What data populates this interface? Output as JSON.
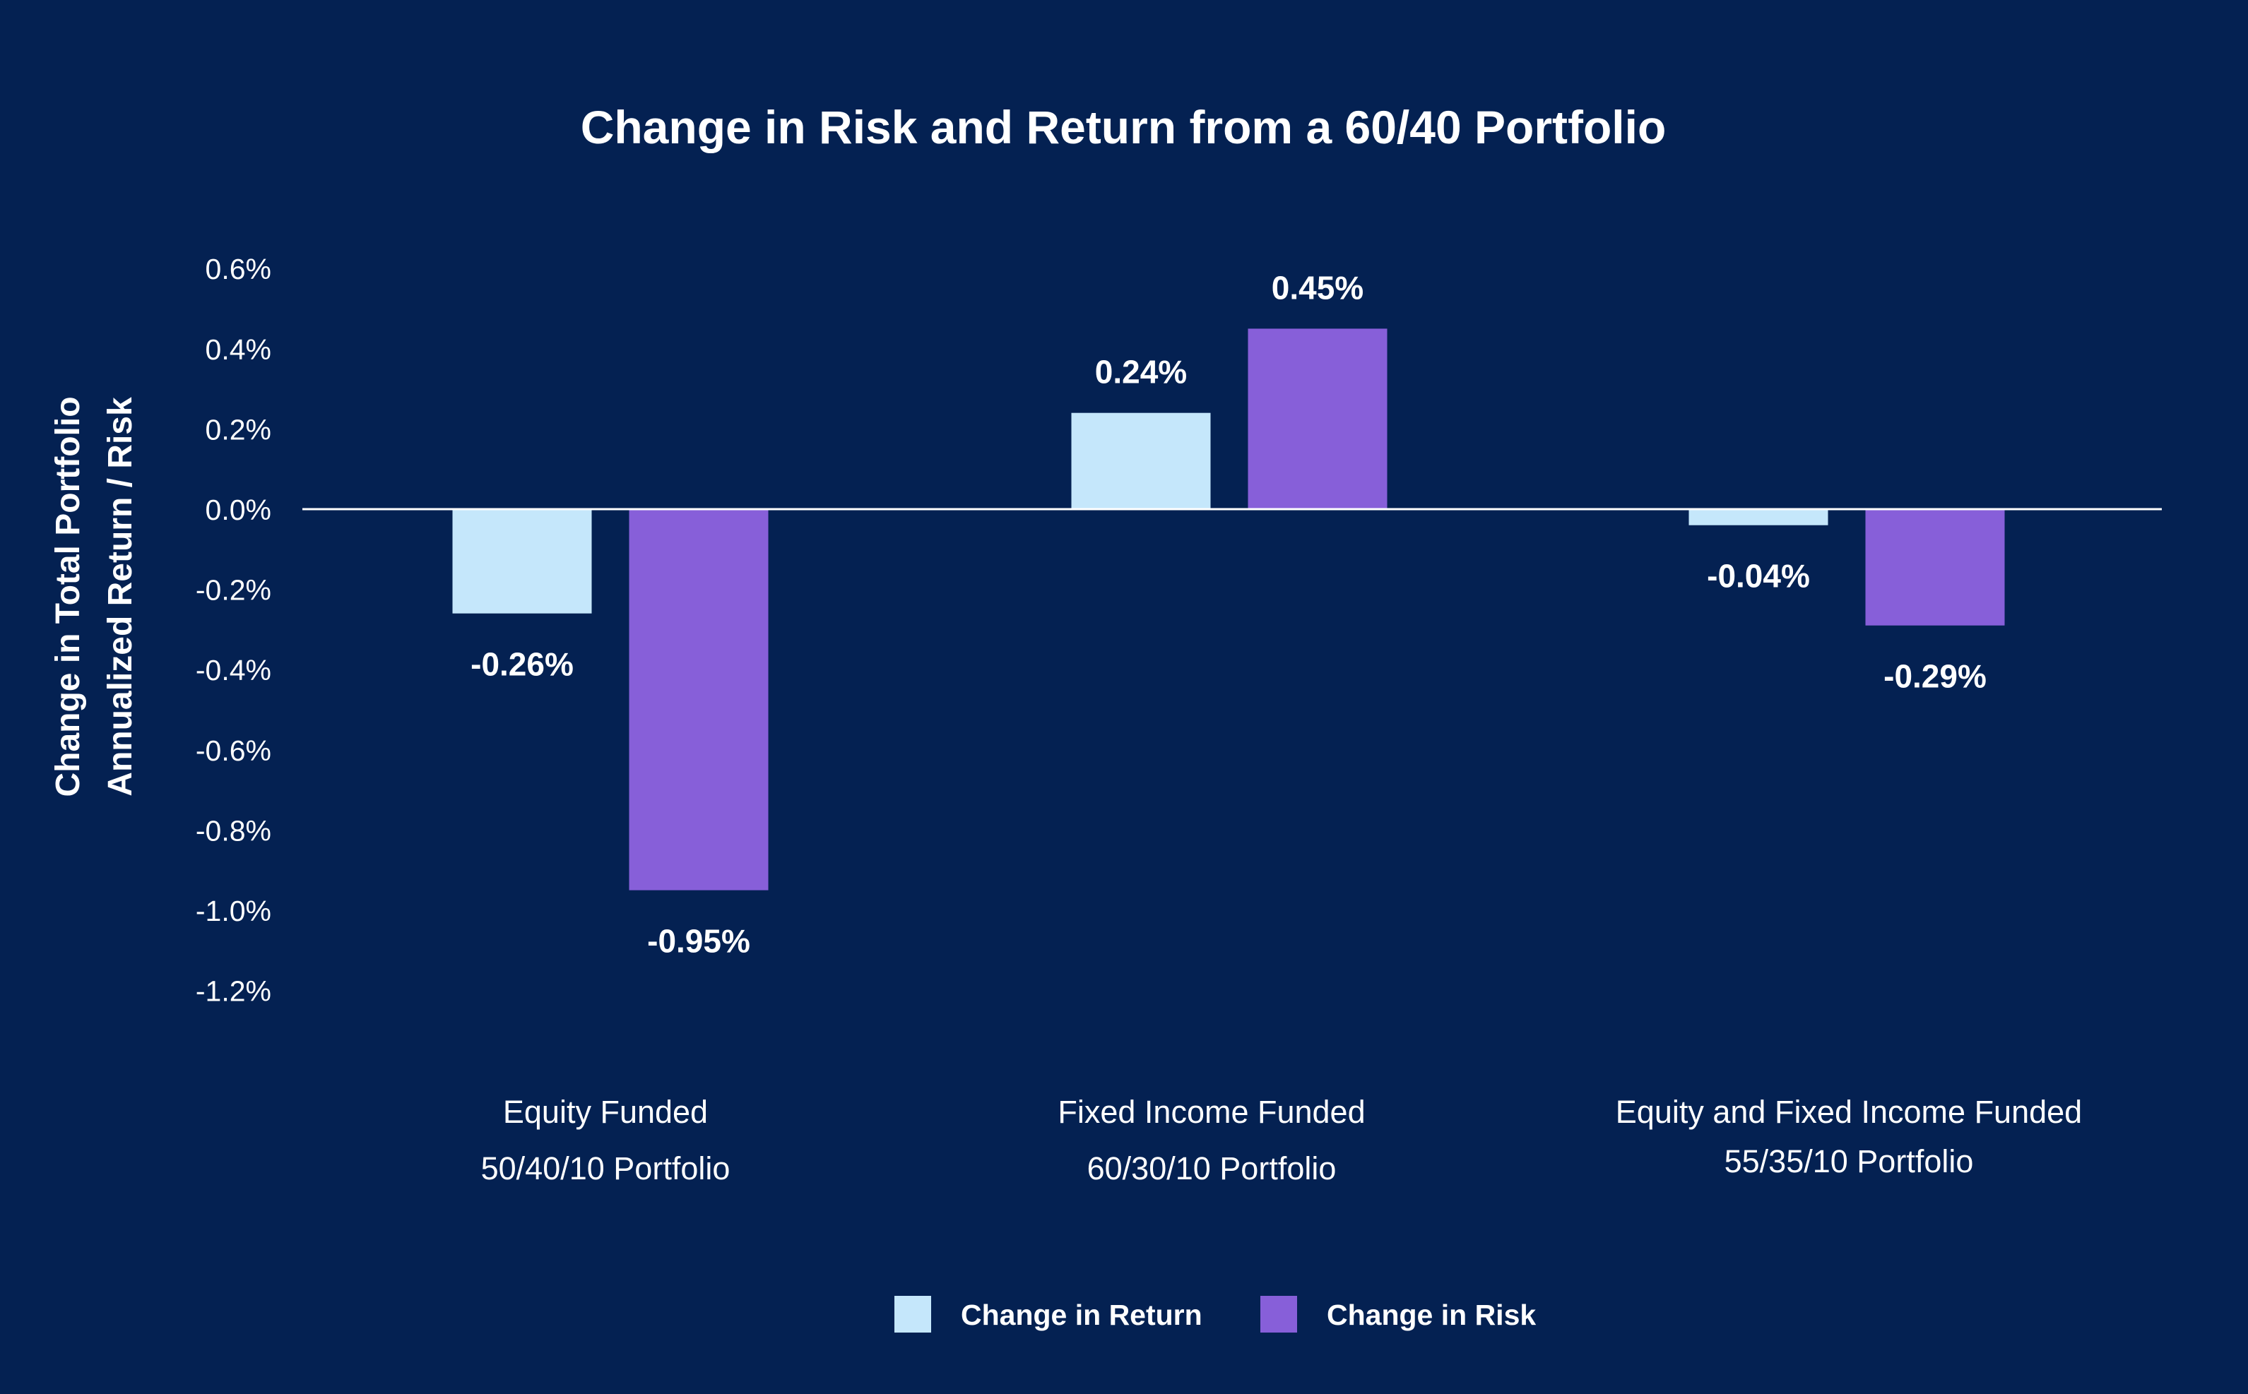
{
  "chart_data": {
    "type": "bar",
    "title": "Change in Risk and Return from a 60/40 Portfolio",
    "ylabel_lines": [
      "Change in Total Portfolio",
      "Annualized Return / Risk"
    ],
    "xlabel": "",
    "ylim": [
      -1.2,
      0.6
    ],
    "yticks": [
      {
        "value": 0.6,
        "label": "0.6%"
      },
      {
        "value": 0.4,
        "label": "0.4%"
      },
      {
        "value": 0.2,
        "label": "0.2%"
      },
      {
        "value": 0.0,
        "label": "0.0%"
      },
      {
        "value": -0.2,
        "label": "-0.2%"
      },
      {
        "value": -0.4,
        "label": "-0.4%"
      },
      {
        "value": -0.6,
        "label": "-0.6%"
      },
      {
        "value": -0.8,
        "label": "-0.8%"
      },
      {
        "value": -1.0,
        "label": "-1.0%"
      },
      {
        "value": -1.2,
        "label": "-1.2%"
      }
    ],
    "categories": [
      {
        "line1": "Equity Funded",
        "line2": "50/40/10 Portfolio"
      },
      {
        "line1": "Fixed Income Funded",
        "line2": "60/30/10 Portfolio"
      },
      {
        "line1": "Equity and Fixed Income Funded",
        "line2": "55/35/10 Portfolio"
      }
    ],
    "series": [
      {
        "name": "Change in Return",
        "color": "#c5e7fb",
        "values": [
          -0.26,
          0.24,
          -0.04
        ],
        "labels": [
          "-0.26%",
          "0.24%",
          "-0.04%"
        ]
      },
      {
        "name": "Change in Risk",
        "color": "#875fd9",
        "values": [
          -0.95,
          0.45,
          -0.29
        ],
        "labels": [
          "-0.95%",
          "0.45%",
          "-0.29%"
        ]
      }
    ],
    "grid": false,
    "legend_position": "bottom-center"
  },
  "colors": {
    "background": "#042152",
    "text": "#ffffff",
    "axis_line": "#ffffff"
  }
}
